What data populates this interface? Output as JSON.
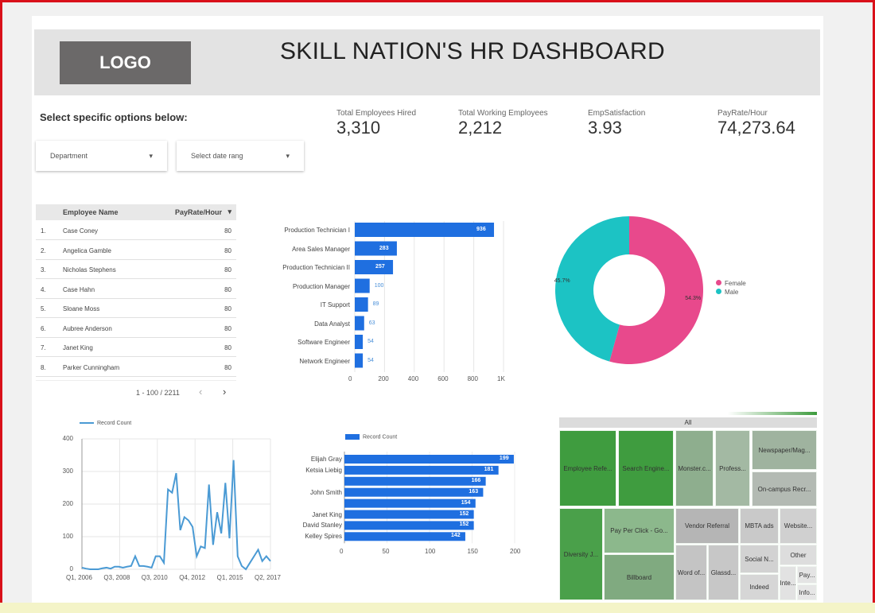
{
  "header": {
    "logo": "LOGO",
    "title": "SKILL NATION'S  HR DASHBOARD"
  },
  "filters": {
    "prompt": "Select specific options below:",
    "department": "Department",
    "date_range": "Select date rang"
  },
  "kpis": [
    {
      "label": "Total Employees Hired",
      "value": "3,310"
    },
    {
      "label": "Total Working Employees",
      "value": "2,212"
    },
    {
      "label": "EmpSatisfaction",
      "value": "3.93"
    },
    {
      "label": "PayRate/Hour",
      "value": "74,273.64"
    }
  ],
  "table": {
    "columns": [
      "Employee Name",
      "PayRate/Hour"
    ],
    "sort_icon": "caret-down",
    "rows": [
      {
        "n": "1.",
        "name": "Case Coney",
        "rate": "80"
      },
      {
        "n": "2.",
        "name": "Angelica Gamble",
        "rate": "80"
      },
      {
        "n": "3.",
        "name": "Nicholas Stephens",
        "rate": "80"
      },
      {
        "n": "4.",
        "name": "Case Hahn",
        "rate": "80"
      },
      {
        "n": "5.",
        "name": "Sloane Moss",
        "rate": "80"
      },
      {
        "n": "6.",
        "name": "Aubree Anderson",
        "rate": "80"
      },
      {
        "n": "7.",
        "name": "Janet King",
        "rate": "80"
      },
      {
        "n": "8.",
        "name": "Parker Cunningham",
        "rate": "80"
      }
    ],
    "pagination": "1 - 100 / 2211"
  },
  "chart_data": [
    {
      "type": "bar",
      "orientation": "horizontal",
      "categories": [
        "Production Technician I",
        "Area Sales Manager",
        "Production Technician II",
        "Production Manager",
        "IT Support",
        "Data Analyst",
        "Software Engineer",
        "Network Engineer"
      ],
      "values": [
        936,
        283,
        257,
        100,
        89,
        63,
        54,
        54
      ],
      "xlim": [
        0,
        1000
      ],
      "xticks": [
        "0",
        "200",
        "400",
        "600",
        "800",
        "1K"
      ],
      "color": "#1f6fe0",
      "grid": true
    },
    {
      "type": "pie",
      "donut": true,
      "categories": [
        "Female",
        "Male"
      ],
      "values": [
        54.3,
        45.7
      ],
      "labels": [
        "54.3%",
        "45.7%"
      ],
      "colors": [
        "#e8498c",
        "#1cc3c4"
      ],
      "legend": "right"
    },
    {
      "type": "line",
      "series": [
        {
          "name": "Record Count",
          "values": [
            5,
            2,
            0,
            0,
            0,
            3,
            5,
            2,
            8,
            8,
            5,
            8,
            10,
            40,
            10,
            10,
            8,
            5,
            40,
            40,
            20,
            245,
            235,
            295,
            120,
            160,
            150,
            130,
            40,
            70,
            65,
            260,
            75,
            175,
            110,
            265,
            95,
            335,
            40,
            10,
            0,
            20,
            40,
            60,
            25,
            40,
            25
          ]
        }
      ],
      "xticks": [
        "Q1, 2006",
        "Q3, 2008",
        "Q3, 2010",
        "Q4, 2012",
        "Q1, 2015",
        "Q2, 2017"
      ],
      "yticks": [
        "0",
        "100",
        "200",
        "300",
        "400"
      ],
      "ylim": [
        0,
        400
      ],
      "color": "#4a9ad4",
      "legend": "top",
      "grid": true
    },
    {
      "type": "bar",
      "orientation": "horizontal",
      "categories": [
        "Elijah Gray",
        "Ketsia Liebig",
        "",
        "John Smith",
        "",
        "Janet King",
        "David Stanley",
        "Kelley Spires"
      ],
      "series": [
        {
          "name": "Record Count",
          "values": [
            199,
            181,
            166,
            163,
            154,
            152,
            152,
            142
          ]
        }
      ],
      "xlim": [
        0,
        200
      ],
      "xticks": [
        "0",
        "50",
        "100",
        "150",
        "200"
      ],
      "color": "#1f6fe0",
      "legend": "top"
    },
    {
      "type": "treemap",
      "root": "All",
      "tiles": [
        "Employee Refe...",
        "Search Engine...",
        "Monster.c...",
        "Profess...",
        "Newspaper/Mag...",
        "On-campus Recr...",
        "Diversity J...",
        "Pay Per Click - Go...",
        "Billboard",
        "Vendor Referral",
        "MBTA ads",
        "Website...",
        "Word of...",
        "Glassd...",
        "Social N...",
        "Indeed",
        "Other",
        "Inte...",
        "Pay...",
        "Info..."
      ]
    }
  ]
}
